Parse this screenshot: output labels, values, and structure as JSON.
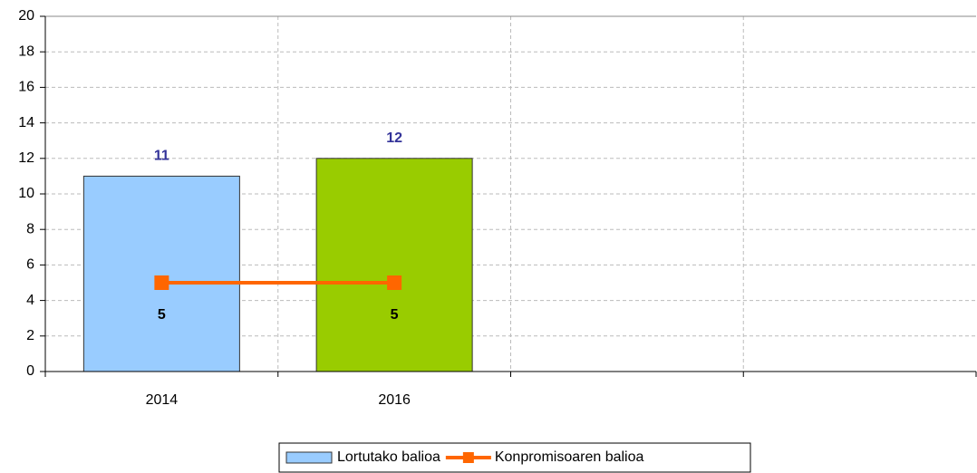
{
  "chart_data": {
    "type": "bar_line",
    "categories": [
      "2014",
      "2016",
      null,
      null
    ],
    "series": [
      {
        "name": "Lortutako balioa",
        "type": "bar",
        "color": "#99ccff",
        "colors": [
          "#99ccff",
          "#99cc00",
          null,
          null
        ],
        "values": [
          11,
          12,
          null,
          null
        ],
        "label_color": "#333399"
      },
      {
        "name": "Konpromisoaren balioa",
        "type": "line",
        "color": "#ff6600",
        "values": [
          5,
          5,
          null,
          null
        ],
        "label_color": "#000000"
      }
    ],
    "ylim": [
      0,
      20
    ],
    "yticks": [
      0,
      2,
      4,
      6,
      8,
      10,
      12,
      14,
      16,
      18,
      20
    ],
    "grid": true
  }
}
